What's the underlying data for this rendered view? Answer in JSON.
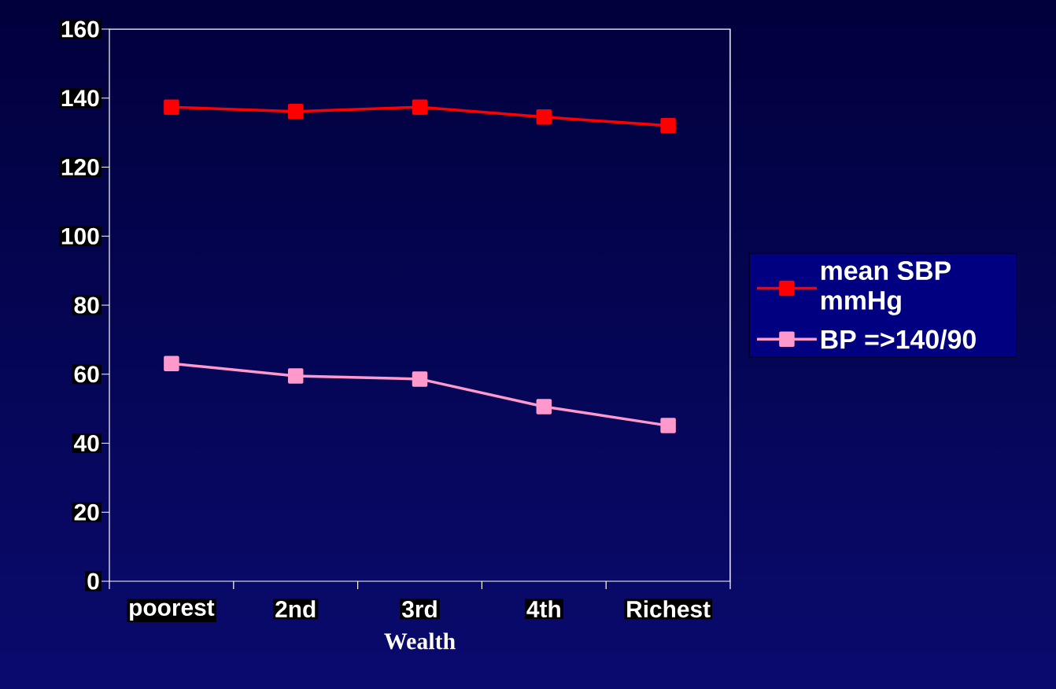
{
  "chart_data": {
    "type": "line",
    "xlabel": "Wealth",
    "categories": [
      "poorest",
      "2nd",
      "3rd",
      "4th",
      "Richest"
    ],
    "series": [
      {
        "name": "mean SBP mmHg",
        "color": "#ff0000",
        "values": [
          137.4,
          136.1,
          137.4,
          134.5,
          132.0
        ]
      },
      {
        "name": "BP =>140/90",
        "color": "#ff99cc",
        "values": [
          63.1,
          59.5,
          58.6,
          50.6,
          45.1
        ]
      }
    ],
    "ylim": [
      0,
      160
    ],
    "yticks": [
      0,
      20,
      40,
      60,
      80,
      100,
      120,
      140,
      160
    ],
    "marker": "square",
    "line_style": "solid",
    "legend": "right",
    "grid": false
  }
}
